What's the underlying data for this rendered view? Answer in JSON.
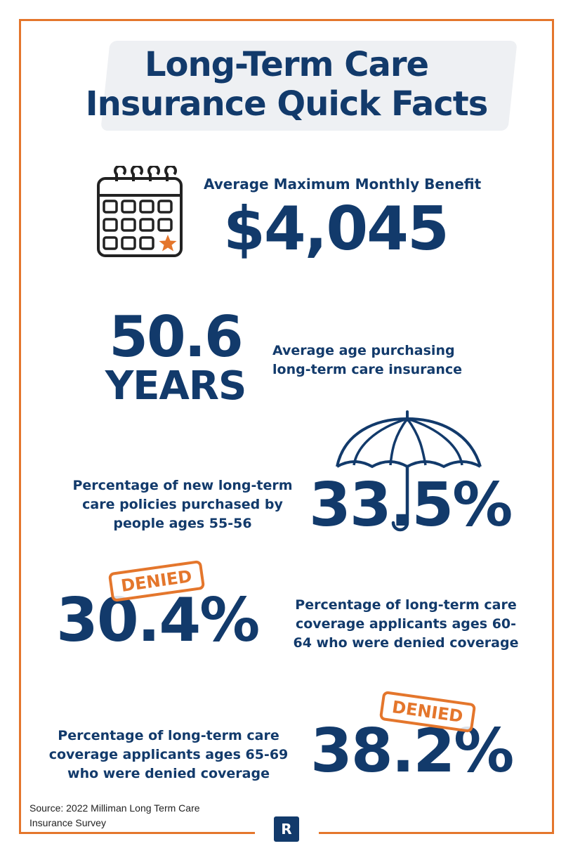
{
  "title": "Long-Term Care Insurance Quick Facts",
  "facts": {
    "monthly_benefit": {
      "label": "Average Maximum Monthly Benefit",
      "value": "$4,045"
    },
    "average_age": {
      "value": "50.6",
      "unit": "YEARS",
      "label": "Average age purchasing long-term care insurance"
    },
    "ages_55_56": {
      "label": "Percentage of new long-term care policies purchased by people ages 55-56",
      "value": "33.5%"
    },
    "denied_60_64": {
      "stamp": "DENIED",
      "value": "30.4%",
      "label": "Percentage of long-term care coverage applicants ages 60-64 who were denied coverage"
    },
    "denied_65_69": {
      "stamp": "DENIED",
      "value": "38.2%",
      "label": "Percentage of long-term care coverage applicants ages 65-69 who were denied coverage"
    }
  },
  "source": "Source: 2022 Milliman Long Term Care Insurance Survey",
  "logo": "R",
  "icons": [
    "calendar-icon",
    "umbrella-icon",
    "star-icon"
  ],
  "colors": {
    "navy": "#123a6b",
    "orange": "#e4762c",
    "wash": "#eef0f3"
  }
}
